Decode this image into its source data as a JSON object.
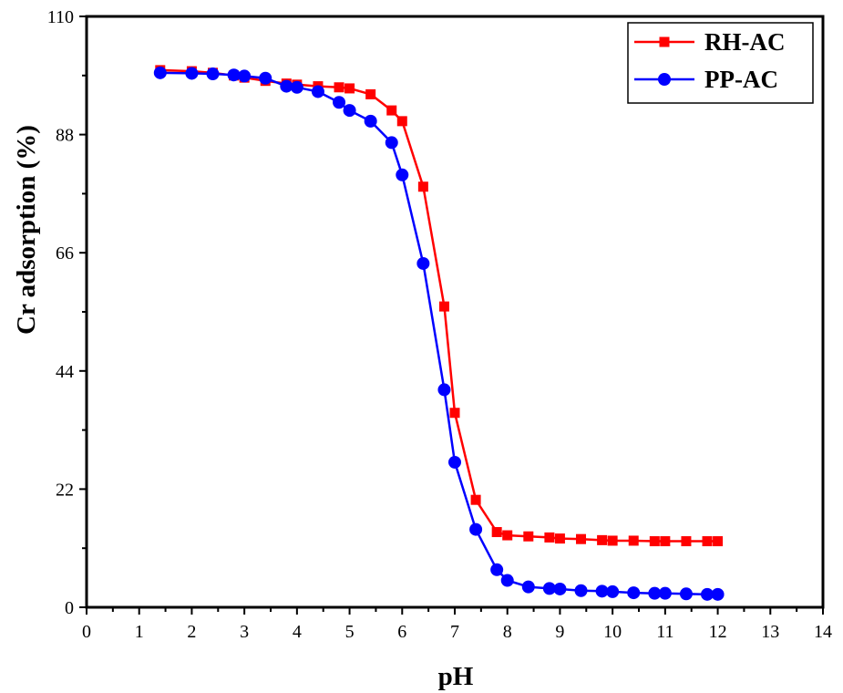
{
  "chart_data": {
    "type": "line",
    "title": "",
    "xlabel": "pH",
    "ylabel": "Cr adsorption (%)",
    "xlim": [
      0,
      14
    ],
    "ylim": [
      0,
      110
    ],
    "xticks": [
      0,
      1,
      2,
      3,
      4,
      5,
      6,
      7,
      8,
      9,
      10,
      11,
      12,
      13,
      14
    ],
    "yticks": [
      0,
      22,
      44,
      66,
      88,
      110
    ],
    "grid": false,
    "legend_position": "top-right",
    "series": [
      {
        "name": "RH-AC",
        "color": "#ff0000",
        "marker": "square",
        "x": [
          1.4,
          2.0,
          2.4,
          2.8,
          3.0,
          3.4,
          3.8,
          4.0,
          4.4,
          4.8,
          5.0,
          5.4,
          5.8,
          6.0,
          6.4,
          6.8,
          7.0,
          7.4,
          7.8,
          8.0,
          8.4,
          8.8,
          9.0,
          9.4,
          9.8,
          10.0,
          10.4,
          10.8,
          11.0,
          11.4,
          11.8,
          12.0
        ],
        "y": [
          100.0,
          99.8,
          99.5,
          99.0,
          98.6,
          98.0,
          97.5,
          97.3,
          97.0,
          96.8,
          96.6,
          95.5,
          92.5,
          90.5,
          78.3,
          56.0,
          36.2,
          20.0,
          14.0,
          13.4,
          13.2,
          13.0,
          12.8,
          12.7,
          12.5,
          12.4,
          12.4,
          12.3,
          12.3,
          12.3,
          12.3,
          12.3
        ]
      },
      {
        "name": "PP-AC",
        "color": "#0000ff",
        "marker": "circle",
        "x": [
          1.4,
          2.0,
          2.4,
          2.8,
          3.0,
          3.4,
          3.8,
          4.0,
          4.4,
          4.8,
          5.0,
          5.4,
          5.8,
          6.0,
          6.4,
          6.8,
          7.0,
          7.4,
          7.8,
          8.0,
          8.4,
          8.8,
          9.0,
          9.4,
          9.8,
          10.0,
          10.4,
          10.8,
          11.0,
          11.4,
          11.8,
          12.0
        ],
        "y": [
          99.5,
          99.4,
          99.3,
          99.1,
          98.9,
          98.5,
          97.0,
          96.8,
          96.0,
          94.0,
          92.5,
          90.5,
          86.5,
          80.5,
          64.0,
          40.5,
          27.0,
          14.5,
          7.0,
          5.0,
          3.8,
          3.5,
          3.4,
          3.1,
          3.0,
          2.9,
          2.7,
          2.6,
          2.6,
          2.5,
          2.4,
          2.4
        ]
      }
    ]
  }
}
